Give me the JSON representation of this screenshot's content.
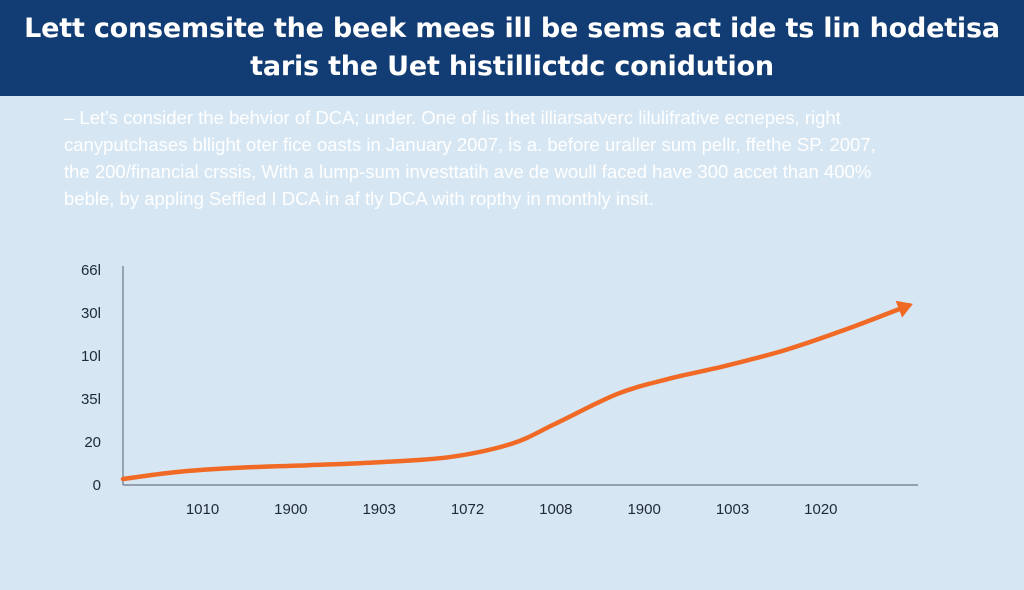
{
  "header": {
    "title_lines": [
      "Lett consemsite the beek mees ill be sems act ide ts lin hodetisa",
      "taris the Uet histillictdc conidution"
    ],
    "background": "#123d74",
    "text_color": "#ffffff"
  },
  "intro": {
    "lines": [
      "– Let's consider the behvior of DCA; under. One of lis thet illiarsatverc lilulifrative ecnepes, right",
      "canyputchases bllight oter fice oasts in January 2007, is a. before uraller sum pellr, ffethe SP. 2007,",
      "the 200/financial crssis, With a lump-sum investtatih ave de woull faced have 300 accet than 400%",
      "beble, by appling Seffled I DCA in af tly DCA with ropthy in monthly insit."
    ]
  },
  "chart_data": {
    "type": "line",
    "title": "",
    "xlabel": "",
    "ylabel": "",
    "y_tick_labels": [
      "0",
      "20",
      "35l",
      "10l",
      "30l",
      "66l"
    ],
    "x_tick_labels": [
      "1010",
      "1900",
      "1903",
      "1072",
      "1008",
      "1900",
      "1003",
      "1020"
    ],
    "ylim": [
      0,
      5
    ],
    "xlim": [
      -0.9,
      8.1
    ],
    "grid": false,
    "legend": "none",
    "arrow_end": true,
    "line_color": "#f06a26",
    "axis_color": "#6d7784",
    "series": [
      {
        "x": [
          -0.9,
          -0.3,
          0.4,
          1.2,
          2.0,
          2.8,
          3.5,
          4.0,
          4.7,
          5.3,
          5.9,
          6.6,
          7.3,
          8.0
        ],
        "y": [
          0.14,
          0.3,
          0.4,
          0.46,
          0.53,
          0.65,
          0.96,
          1.43,
          2.12,
          2.48,
          2.76,
          3.14,
          3.63,
          4.18
        ]
      }
    ]
  }
}
